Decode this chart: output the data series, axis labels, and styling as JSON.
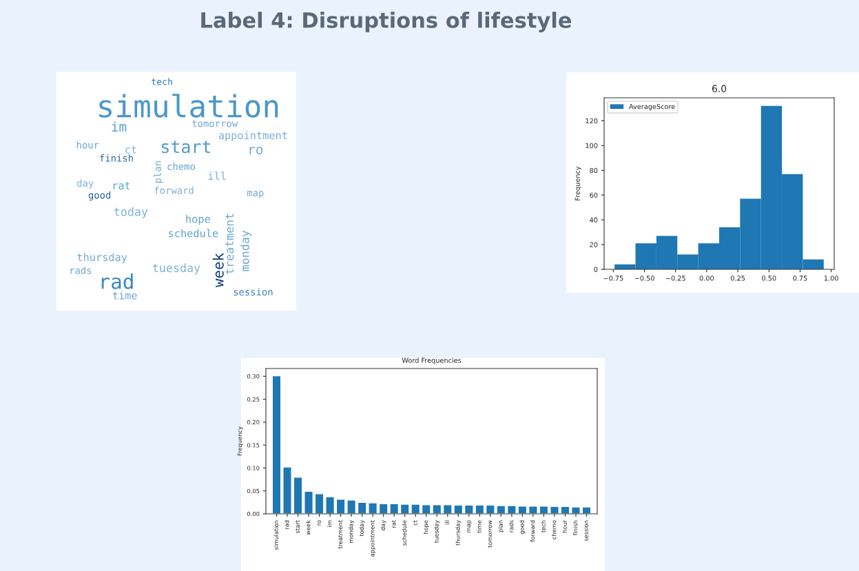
{
  "chart_data": [
    {
      "type": "other",
      "title": "Label 4: Disruptions of lifestyle",
      "annotations": [
        "simulation",
        "tech",
        "im",
        "tomorrow",
        "appointment",
        "hour",
        "ct",
        "start",
        "ro",
        "finish",
        "plan",
        "chemo",
        "ill",
        "day",
        "rat",
        "forward",
        "good",
        "map",
        "today",
        "hope",
        "schedule",
        "treatment",
        "monday",
        "week",
        "thursday",
        "tuesday",
        "rads",
        "rad",
        "time",
        "session"
      ],
      "colors": [
        "#4a98c9",
        "#2e7ebc",
        "#5aa2d0",
        "#6ea9d3",
        "#7aaed6",
        "#6aa6d2",
        "#7eb0d7",
        "#4f9bcb",
        "#72abd4",
        "#2a6aa8",
        "#72abd4",
        "#62a4d1",
        "#7eb0d7",
        "#7aaed6",
        "#5aa2d0",
        "#7eb0d7",
        "#2360a5",
        "#72abd4",
        "#7eb0d7",
        "#62a4d1",
        "#5aa2d0",
        "#72abd4",
        "#6aa6d2",
        "#0b3a78",
        "#72abd4",
        "#80b2d8",
        "#6aa6d2",
        "#3a87c0",
        "#6ea9d3",
        "#3a7fbf"
      ]
    },
    {
      "type": "histogram",
      "title": "6.0",
      "ylabel": "Frequency",
      "bins": [
        -0.74,
        -0.572,
        -0.404,
        -0.236,
        -0.068,
        0.1,
        0.268,
        0.436,
        0.604,
        0.772,
        0.94
      ],
      "series": [
        {
          "name": "AverageScore",
          "color": "#1f77b4",
          "values": [
            4,
            21,
            27,
            12,
            21,
            34,
            57,
            132,
            77,
            8
          ]
        }
      ],
      "xlim": [
        -0.824,
        1.024
      ],
      "ylim": [
        0,
        138.6
      ],
      "xticks": [
        {
          "value": -0.75,
          "label": "−0.75"
        },
        {
          "value": -0.5,
          "label": "−0.50"
        },
        {
          "value": -0.25,
          "label": "−0.25"
        },
        {
          "value": 0,
          "label": "0.00"
        },
        {
          "value": 0.25,
          "label": "0.25"
        },
        {
          "value": 0.5,
          "label": "0.50"
        },
        {
          "value": 0.75,
          "label": "0.75"
        },
        {
          "value": 1,
          "label": "1.00"
        }
      ],
      "yticks": [
        0,
        20,
        40,
        60,
        80,
        100,
        120
      ],
      "legend": "top left"
    },
    {
      "type": "bar",
      "title": "Word Frequencies",
      "ylabel": "Frequency",
      "categories": [
        "simulation",
        "rad",
        "start",
        "week",
        "ro",
        "im",
        "treatment",
        "monday",
        "today",
        "appointment",
        "day",
        "rat",
        "schedule",
        "ct",
        "hope",
        "tuesday",
        "ill",
        "thursday",
        "map",
        "time",
        "tomorrow",
        "plan",
        "rads",
        "good",
        "forward",
        "tech",
        "chemo",
        "hour",
        "finish",
        "session"
      ],
      "values": [
        0.301,
        0.102,
        0.08,
        0.049,
        0.044,
        0.037,
        0.032,
        0.03,
        0.025,
        0.024,
        0.022,
        0.022,
        0.021,
        0.021,
        0.02,
        0.02,
        0.02,
        0.019,
        0.019,
        0.019,
        0.019,
        0.018,
        0.018,
        0.017,
        0.017,
        0.017,
        0.016,
        0.016,
        0.015,
        0.015
      ],
      "color": "#1f77b4",
      "ylim": [
        0,
        0.317
      ],
      "yticks": [
        {
          "value": 0,
          "label": "0.00"
        },
        {
          "value": 0.05,
          "label": "0.05"
        },
        {
          "value": 0.1,
          "label": "0.10"
        },
        {
          "value": 0.15,
          "label": "0.15"
        },
        {
          "value": 0.2,
          "label": "0.20"
        },
        {
          "value": 0.25,
          "label": "0.25"
        },
        {
          "value": 0.3,
          "label": "0.30"
        }
      ]
    }
  ]
}
